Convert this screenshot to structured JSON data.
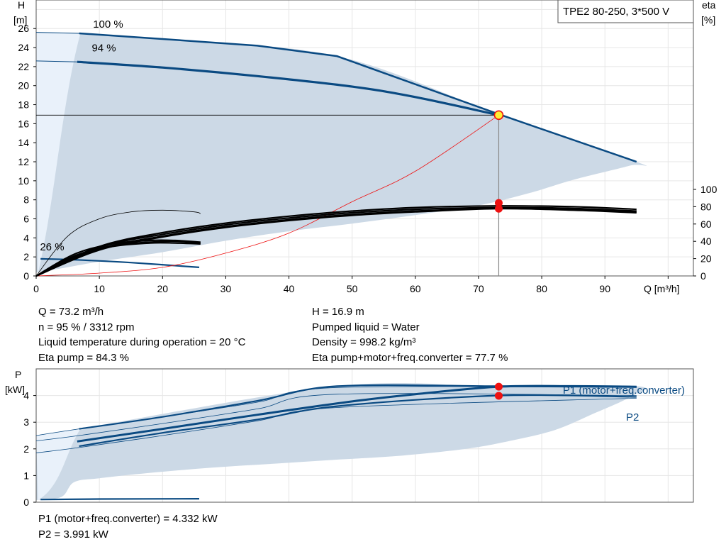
{
  "colors": {
    "curve": "#0a4a82",
    "fill": "#ccd9e6",
    "light": "#e9f1fa",
    "duty": "#ee1111",
    "eta": "#000000"
  },
  "chart_data": [
    {
      "type": "line",
      "title": "TPE2 80-250, 3*500 V",
      "xlabel": "Q [m³/h]",
      "ylabel": "H",
      "ylabel_unit": "[m]",
      "y2label": "eta",
      "y2label_unit": "[%]",
      "xlim": [
        0,
        104
      ],
      "ylim": [
        0,
        29
      ],
      "y2lim": [
        0,
        100
      ],
      "xticks": [
        0,
        10,
        20,
        30,
        40,
        50,
        60,
        70,
        80,
        90
      ],
      "yticks": [
        0,
        2,
        4,
        6,
        8,
        10,
        12,
        14,
        16,
        18,
        20,
        22,
        24,
        26
      ],
      "y2ticks": [
        0,
        20,
        40,
        60,
        80,
        100
      ],
      "grid": true,
      "curve_labels": [
        {
          "text": "100 %",
          "x": 9,
          "y": 26.1
        },
        {
          "text": "94 %",
          "x": 8.8,
          "y": 23.6
        },
        {
          "text": "26 %",
          "x": 0.6,
          "y": 2.7
        }
      ],
      "envelope": [
        [
          0,
          25.6
        ],
        [
          6.8,
          25.5
        ],
        [
          20,
          24.9
        ],
        [
          47.6,
          23.1
        ],
        [
          73.2,
          17.0
        ],
        [
          95,
          12.0
        ],
        [
          94,
          11.6
        ],
        [
          85,
          10.1
        ],
        [
          78,
          8.7
        ],
        [
          70,
          7.4
        ],
        [
          60,
          6.4
        ],
        [
          50,
          5.5
        ],
        [
          40,
          4.7
        ],
        [
          30,
          3.7
        ],
        [
          20,
          2.5
        ],
        [
          10,
          1.5
        ],
        [
          4,
          0.8
        ],
        [
          0,
          0.35
        ]
      ],
      "series": [
        {
          "name": "100 %",
          "x": [
            6.8,
            20,
            35,
            47.6,
            73.2,
            95
          ],
          "y": [
            25.5,
            24.9,
            24.2,
            23.1,
            17.0,
            12.0
          ]
        },
        {
          "name": "94 %",
          "x": [
            6.5,
            20,
            35,
            50,
            60,
            73.2
          ],
          "y": [
            22.5,
            21.9,
            21.0,
            19.9,
            18.8,
            16.9
          ]
        },
        {
          "name": "26 %",
          "x": [
            0.7,
            6,
            15,
            25.8
          ],
          "y": [
            1.8,
            1.7,
            1.4,
            0.9
          ]
        },
        {
          "name": "system curve",
          "x": [
            0,
            10,
            20,
            30,
            40,
            50,
            60,
            73.2
          ],
          "y": [
            0,
            0.3,
            0.9,
            2.4,
            4.5,
            7.8,
            11.0,
            16.9
          ]
        }
      ],
      "eta_series": [
        {
          "name": "eta 100 %",
          "x": [
            0,
            10,
            20,
            30,
            40,
            50,
            60,
            73.2,
            85,
            95
          ],
          "y": [
            0,
            33,
            48,
            59,
            67,
            73,
            77,
            79,
            78,
            75
          ]
        },
        {
          "name": "eta 94 %",
          "x": [
            0,
            10,
            20,
            30,
            40,
            50,
            60,
            73.2,
            85,
            95
          ],
          "y": [
            0,
            31,
            46,
            57,
            65,
            71,
            75,
            78,
            77,
            74
          ]
        },
        {
          "name": "eta 94 % b",
          "x": [
            0,
            10,
            20,
            30,
            40,
            50,
            60,
            73.2,
            85,
            95
          ],
          "y": [
            0,
            30,
            45,
            56,
            64,
            70,
            74,
            77.7,
            76,
            73
          ]
        },
        {
          "name": "eta 100 % b",
          "x": [
            0,
            10,
            20,
            30,
            40,
            50,
            60,
            73.2,
            85,
            95
          ],
          "y": [
            0,
            34,
            50,
            61,
            69,
            75,
            79,
            81,
            80,
            77
          ]
        },
        {
          "name": "eta 26 % a",
          "x": [
            0,
            6,
            12,
            18,
            22,
            26
          ],
          "y": [
            0,
            25,
            37,
            41,
            41,
            39
          ]
        },
        {
          "name": "eta 26 % b",
          "x": [
            0,
            6,
            12,
            18,
            22,
            26
          ],
          "y": [
            0,
            23,
            35,
            39,
            40,
            38
          ]
        },
        {
          "name": "eta 26 % c",
          "x": [
            0,
            6,
            12,
            18,
            22,
            26
          ],
          "y": [
            0,
            22,
            34,
            38,
            38,
            37
          ]
        },
        {
          "name": "eta 26 % thin",
          "x": [
            0,
            5,
            10,
            15,
            20,
            25,
            26
          ],
          "y": [
            0,
            46,
            66,
            74,
            76,
            74,
            72
          ]
        }
      ],
      "duty_point": {
        "x": 73.2,
        "y": 16.9
      },
      "eta_points": [
        {
          "x": 73.2,
          "y": 84.3
        },
        {
          "x": 73.2,
          "y": 77.7
        }
      ]
    },
    {
      "type": "line",
      "xlabel": "",
      "ylabel": "P",
      "ylabel_unit": "[kW]",
      "xlim": [
        0,
        104
      ],
      "ylim": [
        0,
        5
      ],
      "yticks": [
        0,
        1,
        2,
        3,
        4
      ],
      "grid": true,
      "series_labels": [
        {
          "text": "P1 (motor+freq.converter)"
        },
        {
          "text": "P2"
        }
      ],
      "envelope": [
        [
          0,
          2.5
        ],
        [
          6.8,
          2.75
        ],
        [
          47.6,
          4.35
        ],
        [
          73.2,
          4.35
        ],
        [
          95,
          4.35
        ],
        [
          94,
          3.95
        ],
        [
          88,
          3.3
        ],
        [
          82,
          2.7
        ],
        [
          75,
          2.3
        ],
        [
          68,
          2.0
        ],
        [
          58,
          1.75
        ],
        [
          48,
          1.6
        ],
        [
          38,
          1.45
        ],
        [
          28,
          1.3
        ],
        [
          18,
          1.1
        ],
        [
          10,
          0.9
        ],
        [
          6,
          0.75
        ],
        [
          4,
          0.2
        ],
        [
          0,
          0.08
        ]
      ],
      "series": [
        {
          "name": "P1 100 %",
          "x": [
            6.8,
            20,
            35,
            47.6,
            73.2,
            95
          ],
          "y": [
            2.75,
            3.2,
            3.8,
            4.35,
            4.35,
            4.33
          ]
        },
        {
          "name": "P1 94 %",
          "x": [
            6.5,
            20,
            35,
            50,
            60,
            73.2,
            85,
            95
          ],
          "y": [
            2.28,
            2.75,
            3.28,
            3.78,
            4.05,
            4.332,
            4.35,
            4.33
          ]
        },
        {
          "name": "P2 100 %",
          "x": [
            6.8,
            20,
            35,
            47.6,
            73.2,
            95
          ],
          "y": [
            2.1,
            2.6,
            3.1,
            3.6,
            4.0,
            3.95
          ]
        },
        {
          "name": "thin 1",
          "x": [
            0,
            6.8,
            20,
            35,
            47.6,
            95
          ],
          "y": [
            2.5,
            2.75,
            3.2,
            3.75,
            4.3,
            4.3
          ]
        },
        {
          "name": "thin 2",
          "x": [
            0,
            6.8,
            20,
            35,
            47.6,
            95
          ],
          "y": [
            2.3,
            2.5,
            2.95,
            3.5,
            4.05,
            4.0
          ]
        },
        {
          "name": "thin 3",
          "x": [
            0,
            6.8,
            20,
            35,
            47.6,
            95
          ],
          "y": [
            1.85,
            2.05,
            2.5,
            3.05,
            3.55,
            3.9
          ]
        },
        {
          "name": "P 26 %",
          "x": [
            0.7,
            10,
            25.8
          ],
          "y": [
            0.1,
            0.12,
            0.13
          ]
        }
      ],
      "duty_points": [
        {
          "x": 73.2,
          "y": 4.332
        },
        {
          "x": 73.2,
          "y": 3.991
        }
      ]
    }
  ],
  "info": {
    "left": [
      "Q = 73.2 m³/h",
      "n = 95 % / 3312 rpm",
      "Liquid temperature during operation = 20 °C",
      "Eta pump = 84.3 %"
    ],
    "right": [
      "H = 16.9 m",
      "Pumped liquid = Water",
      "Density = 998.2 kg/m³",
      "Eta pump+motor+freq.converter = 77.7 %"
    ],
    "bottom": [
      "P1 (motor+freq.converter) = 4.332 kW",
      "P2 = 3.991 kW"
    ]
  }
}
